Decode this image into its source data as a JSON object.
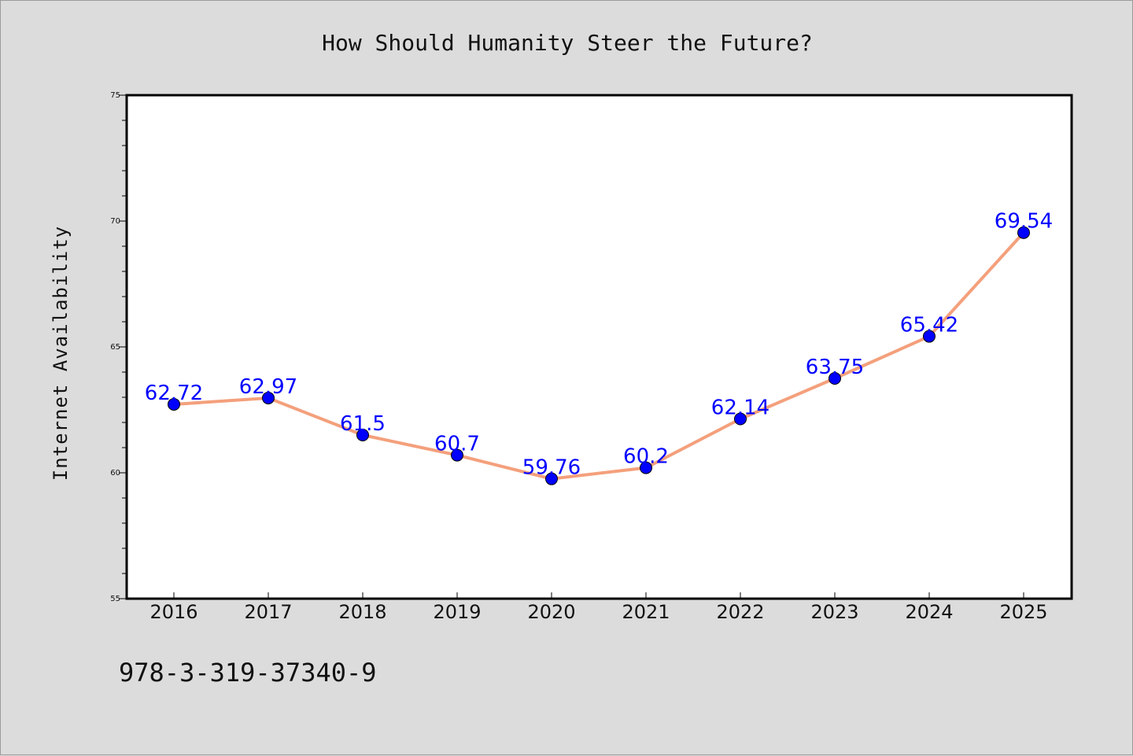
{
  "chart_data": {
    "type": "line",
    "title": "How Should Humanity Steer the Future?",
    "xlabel": "",
    "ylabel": "Internet Availability",
    "categories": [
      "2016",
      "2017",
      "2018",
      "2019",
      "2020",
      "2021",
      "2022",
      "2023",
      "2024",
      "2025"
    ],
    "series": [
      {
        "values": [
          62.72,
          62.97,
          61.5,
          60.7,
          59.76,
          60.2,
          62.14,
          63.75,
          65.42,
          69.54
        ],
        "labels": [
          "62.72",
          "62.97",
          "61.5",
          "60.7",
          "59.76",
          "60.2",
          "62.14",
          "63.75",
          "65.42",
          "69.54"
        ]
      }
    ],
    "ylim": [
      55,
      75
    ],
    "yticks": [
      "55",
      "60",
      "65",
      "70",
      "75"
    ],
    "grid": false,
    "line_color": "#f4a07c",
    "marker_color": "#0000ff",
    "label_color": "#0000ff"
  },
  "footer_text": "978-3-319-37340-9"
}
